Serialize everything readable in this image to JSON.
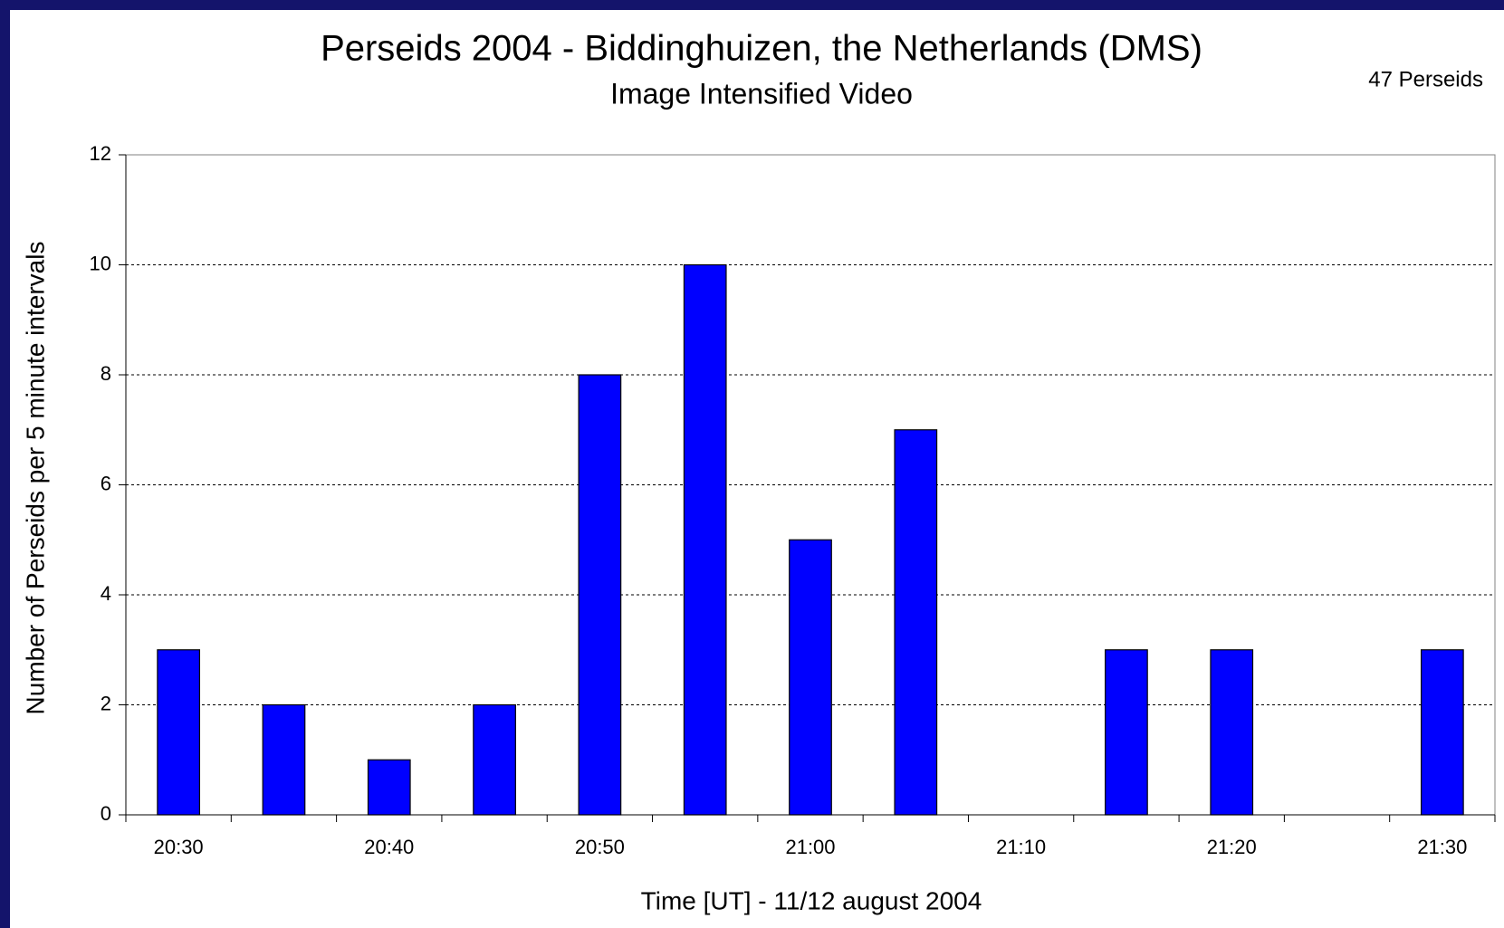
{
  "chart_data": {
    "type": "bar",
    "title": "Perseids 2004 - Biddinghuizen, the Netherlands (DMS)",
    "subtitle": "Image Intensified Video",
    "annotation": "47 Perseids",
    "x_label": "Time [UT] - 11/12 august 2004",
    "y_label": "Number of Perseids per 5 minute intervals",
    "categories": [
      "20:30",
      null,
      "20:40",
      null,
      "20:50",
      null,
      "21:00",
      null,
      "21:10",
      null,
      "21:20",
      null,
      "21:30"
    ],
    "values": [
      3,
      2,
      1,
      2,
      8,
      10,
      5,
      7,
      0,
      3,
      3,
      0,
      3
    ],
    "color": "#0000ff",
    "ylim": [
      0,
      12
    ],
    "yticks": [
      0,
      2,
      4,
      6,
      8,
      10,
      12
    ],
    "grid": true
  }
}
